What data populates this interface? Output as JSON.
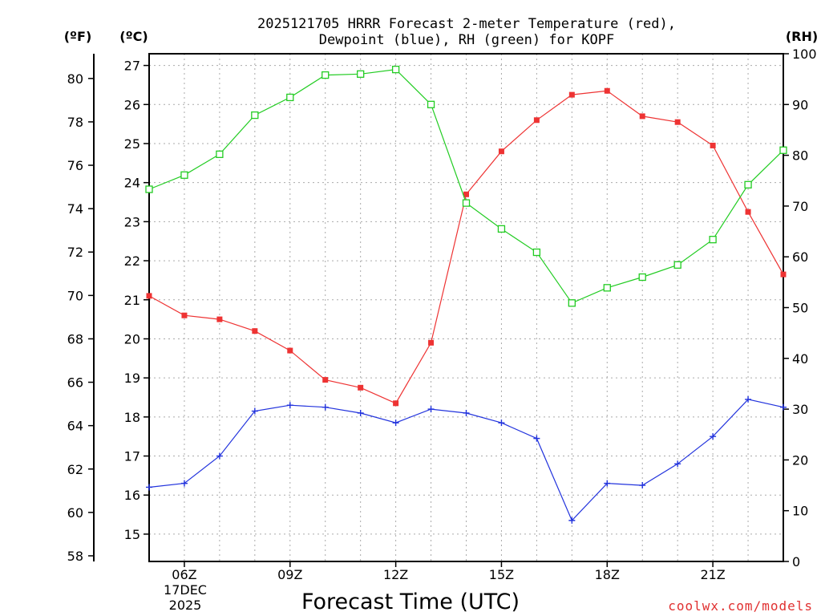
{
  "chart_data": {
    "type": "line",
    "title_line1": "2025121705 HRRR Forecast 2-meter Temperature (red),",
    "title_line2": "Dewpoint (blue), RH (green) for KOPF",
    "xlabel": "Forecast Time (UTC)",
    "unit_f": "(ºF)",
    "unit_c": "(ºC)",
    "unit_rh": "(RH)",
    "credit": "coolwx.com/models",
    "date_label_day": "17DEC",
    "date_label_year": "2025",
    "x_hours": [
      5,
      6,
      7,
      8,
      9,
      10,
      11,
      12,
      13,
      14,
      15,
      16,
      17,
      18,
      19,
      20,
      21,
      22,
      23
    ],
    "xlim": [
      5,
      23
    ],
    "x_ticks": [
      {
        "hour": 6,
        "label": "06Z"
      },
      {
        "hour": 9,
        "label": "09Z"
      },
      {
        "hour": 12,
        "label": "12Z"
      },
      {
        "hour": 15,
        "label": "15Z"
      },
      {
        "hour": 18,
        "label": "18Z"
      },
      {
        "hour": 21,
        "label": "21Z"
      }
    ],
    "celsius_axis": {
      "min": 14.3,
      "max": 27.3,
      "ticks": [
        15,
        16,
        17,
        18,
        19,
        20,
        21,
        22,
        23,
        24,
        25,
        26,
        27
      ]
    },
    "fahrenheit_ticks": [
      58,
      60,
      62,
      64,
      66,
      68,
      70,
      72,
      74,
      76,
      78,
      80
    ],
    "rh_axis": {
      "min": 0,
      "max": 100,
      "ticks": [
        0,
        10,
        20,
        30,
        40,
        50,
        60,
        70,
        80,
        90,
        100
      ]
    },
    "series": [
      {
        "name": "Temperature",
        "units": "°C",
        "color": "#ee3333",
        "marker": "filled-square",
        "axis": "celsius",
        "values": [
          21.1,
          20.6,
          20.5,
          20.2,
          19.7,
          18.95,
          18.75,
          18.35,
          19.9,
          23.7,
          24.8,
          25.6,
          26.25,
          26.35,
          25.7,
          25.55,
          24.95,
          23.25,
          21.65
        ]
      },
      {
        "name": "Dewpoint",
        "units": "°C",
        "color": "#2233dd",
        "marker": "plus",
        "axis": "celsius",
        "values": [
          16.2,
          16.3,
          17.0,
          18.15,
          18.3,
          18.25,
          18.1,
          17.85,
          18.2,
          18.1,
          17.85,
          17.45,
          15.35,
          16.3,
          16.25,
          16.8,
          17.5,
          18.45,
          18.25
        ]
      },
      {
        "name": "RH",
        "units": "%",
        "color": "#22cc22",
        "marker": "open-square",
        "axis": "rh",
        "values": [
          73.3,
          76.1,
          80.2,
          87.9,
          91.4,
          95.8,
          96.0,
          96.9,
          90.0,
          70.6,
          65.5,
          60.9,
          50.9,
          53.9,
          56.0,
          58.4,
          63.4,
          74.2,
          81.0
        ]
      }
    ]
  }
}
